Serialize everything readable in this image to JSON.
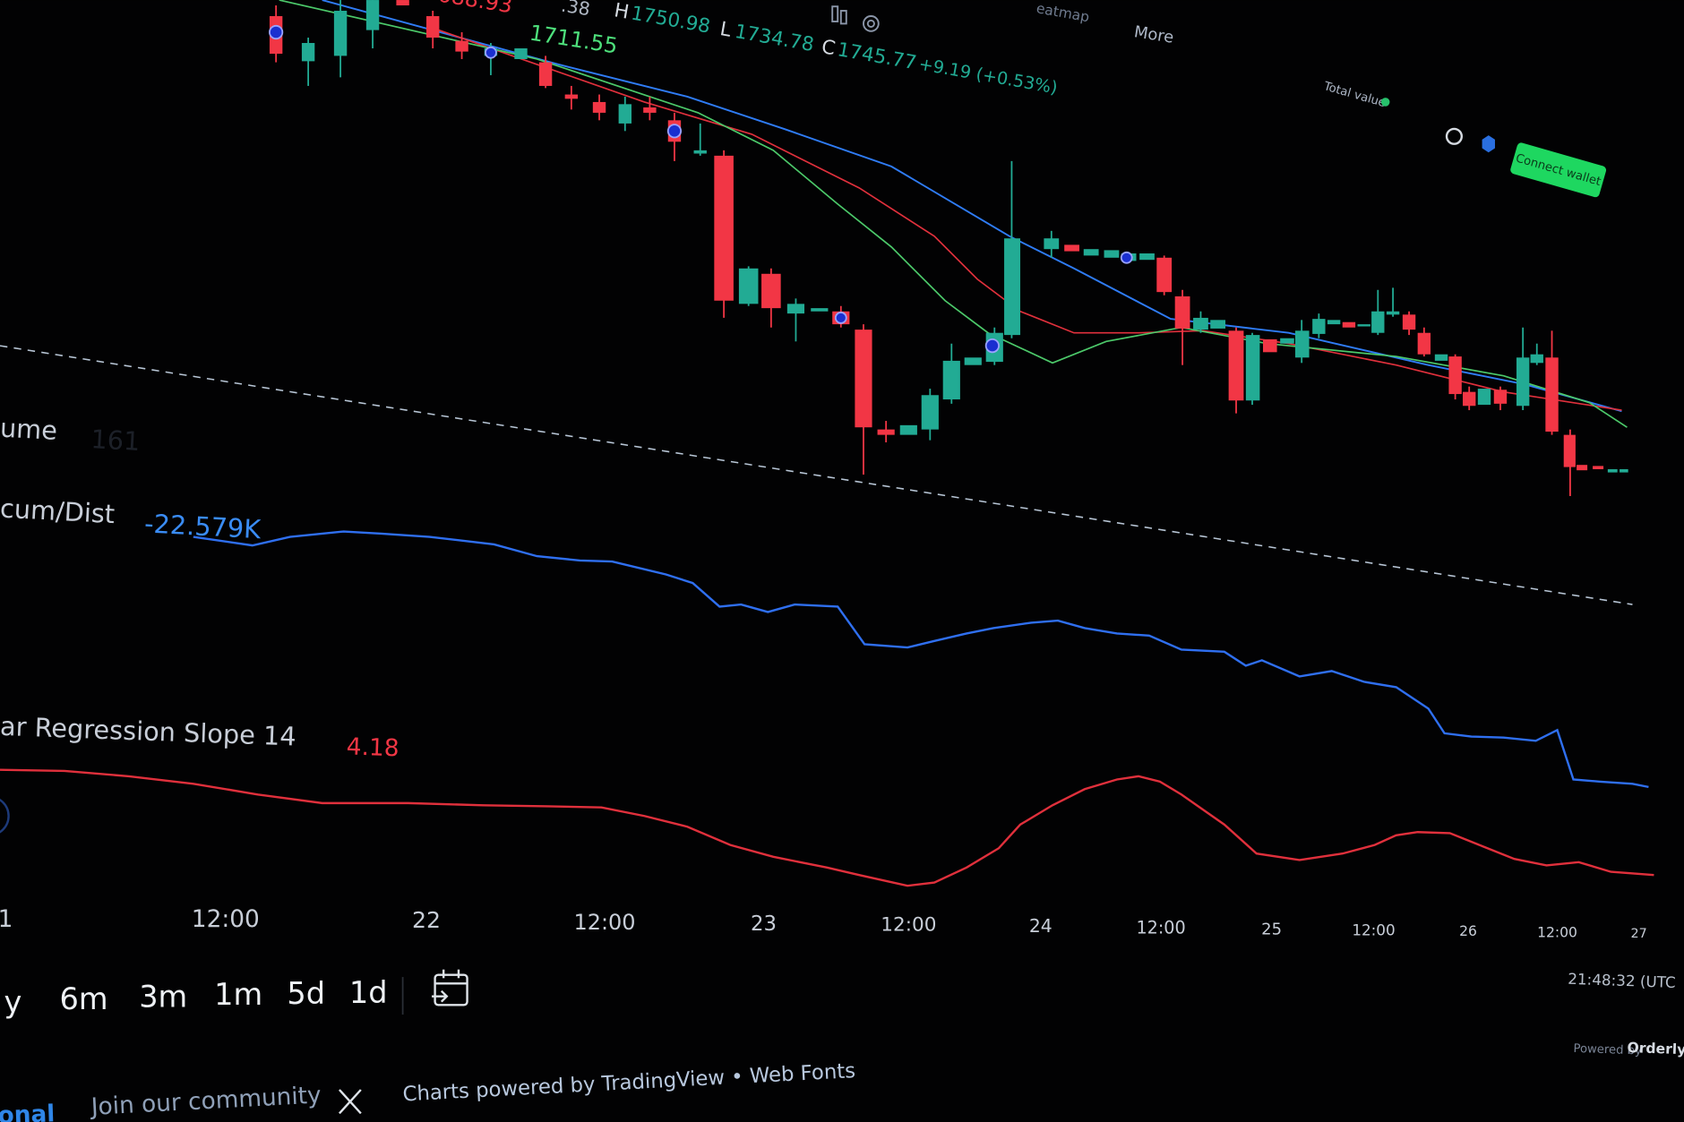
{
  "header": {
    "fragment": ".38",
    "low_prev": "688.93",
    "ma_value": "1711.55",
    "h_label": "H",
    "high": "1750.98",
    "l_label": "L",
    "low": "1734.78",
    "c_label": "C",
    "close": "1745.77",
    "change": "+9.19 (+0.53%)",
    "heatmap": "eatmap",
    "more": "More"
  },
  "wallet": {
    "total_value": "Total value",
    "connect": "Connect wallet"
  },
  "indicators": {
    "volume_label": "ume",
    "volume_value": "161",
    "accum_label": "cum/Dist",
    "accum_value": "-22.579K",
    "slope_label": "ar Regression Slope 14",
    "slope_value": "4.18"
  },
  "time_axis": [
    "1",
    "12:00",
    "22",
    "12:00",
    "23",
    "12:00",
    "24",
    "12:00",
    "25",
    "12:00",
    "26",
    "12:00",
    "27"
  ],
  "timeframes": [
    "y",
    "6m",
    "3m",
    "1m",
    "5d",
    "1d"
  ],
  "clock": "21:48:32 (UTC",
  "powered": {
    "prefix": "Powered by",
    "brand": "Orderly"
  },
  "footer": {
    "left": "onal",
    "community": "Join our community",
    "credits": "Charts powered by TradingView • Web Fonts"
  }
}
